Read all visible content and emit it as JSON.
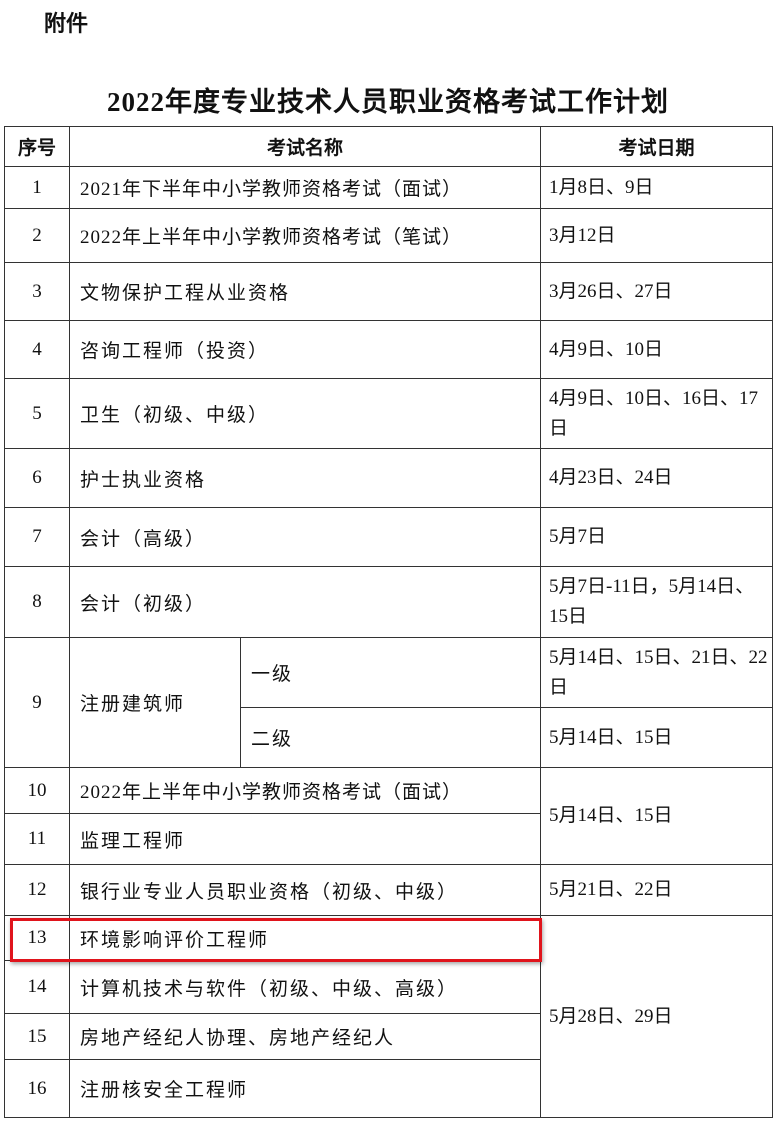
{
  "attachment_label": "附件",
  "title": "2022年度专业技术人员职业资格考试工作计划",
  "headers": {
    "no": "序号",
    "name": "考试名称",
    "date": "考试日期"
  },
  "rows": [
    {
      "no": "1",
      "name": "2021年下半年中小学教师资格考试（面试）",
      "date": "1月8日、9日"
    },
    {
      "no": "2",
      "name": "2022年上半年中小学教师资格考试（笔试）",
      "date": "3月12日"
    },
    {
      "no": "3",
      "name": "文物保护工程从业资格",
      "date": "3月26日、27日"
    },
    {
      "no": "4",
      "name": "咨询工程师（投资）",
      "date": "4月9日、10日"
    },
    {
      "no": "5",
      "name": "卫生（初级、中级）",
      "date": "4月9日、10日、16日、17日"
    },
    {
      "no": "6",
      "name": "护士执业资格",
      "date": "4月23日、24日"
    },
    {
      "no": "7",
      "name": "会计（高级）",
      "date": "5月7日"
    },
    {
      "no": "8",
      "name": "会计（初级）",
      "date": "5月7日-11日，5月14日、15日"
    },
    {
      "no": "9",
      "name": "注册建筑师",
      "sub": [
        {
          "level": "一级",
          "date": "5月14日、15日、21日、22日"
        },
        {
          "level": "二级",
          "date": "5月14日、15日"
        }
      ]
    },
    {
      "no": "10",
      "name": "2022年上半年中小学教师资格考试（面试）"
    },
    {
      "no": "11",
      "name": "监理工程师"
    },
    {
      "no": "12",
      "name": "银行业专业人员职业资格（初级、中级）",
      "date": "5月21日、22日"
    },
    {
      "no": "13",
      "name": "环境影响评价工程师"
    },
    {
      "no": "14",
      "name": "计算机技术与软件（初级、中级、高级）"
    },
    {
      "no": "15",
      "name": "房地产经纪人协理、房地产经纪人"
    },
    {
      "no": "16",
      "name": "注册核安全工程师"
    }
  ],
  "merged_dates": {
    "rows_10_11": "5月14日、15日",
    "rows_13_16": "5月28日、29日"
  },
  "highlight_color": "#e0141c"
}
